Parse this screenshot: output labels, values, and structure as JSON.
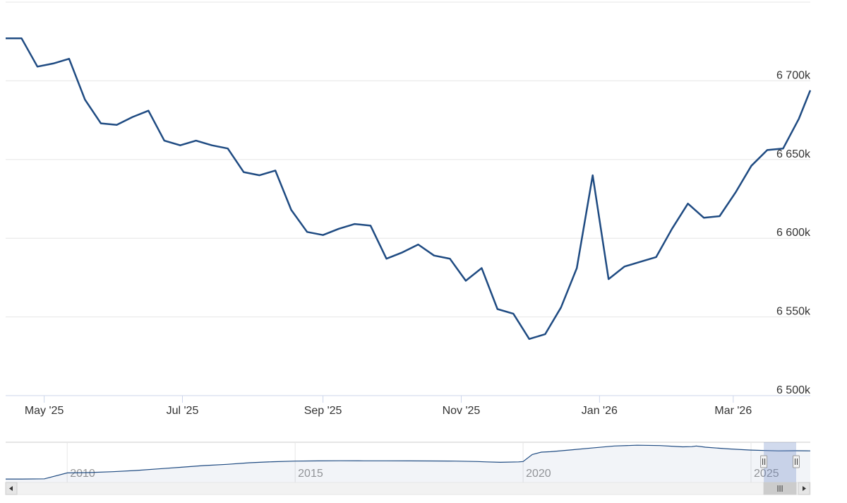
{
  "chart_data": {
    "type": "line",
    "title": "",
    "xlabel": "",
    "ylabel": "",
    "ylim": [
      6500000,
      6750000
    ],
    "y_ticks": [
      6500000,
      6550000,
      6600000,
      6650000,
      6700000
    ],
    "y_tick_labels": [
      "6 500k",
      "6 550k",
      "6 600k",
      "6 650k",
      "6 700k"
    ],
    "x_tick_labels": [
      "May '25",
      "Jul '25",
      "Sep '25",
      "Nov '25",
      "Jan '26",
      "Mar '26"
    ],
    "x_tick_dates": [
      "2025-05-01",
      "2025-07-01",
      "2025-09-01",
      "2025-11-01",
      "2026-01-01",
      "2026-03-01"
    ],
    "x_range": [
      "2025-04-14",
      "2026-04-04"
    ],
    "grid": true,
    "line_color": "#1f4b82",
    "series": [
      {
        "x": [
          "2025-04-14",
          "2025-04-21",
          "2025-04-28",
          "2025-05-05",
          "2025-05-12",
          "2025-05-19",
          "2025-05-26",
          "2025-06-02",
          "2025-06-09",
          "2025-06-16",
          "2025-06-23",
          "2025-06-30",
          "2025-07-07",
          "2025-07-14",
          "2025-07-21",
          "2025-07-28",
          "2025-08-04",
          "2025-08-11",
          "2025-08-18",
          "2025-08-25",
          "2025-09-01",
          "2025-09-08",
          "2025-09-15",
          "2025-09-22",
          "2025-09-29",
          "2025-10-06",
          "2025-10-13",
          "2025-10-20",
          "2025-10-27",
          "2025-11-03",
          "2025-11-10",
          "2025-11-17",
          "2025-11-24",
          "2025-12-01",
          "2025-12-08",
          "2025-12-15",
          "2025-12-22",
          "2025-12-29",
          "2026-01-05",
          "2026-01-12",
          "2026-01-19",
          "2026-01-26",
          "2026-02-02",
          "2026-02-09",
          "2026-02-16",
          "2026-02-23",
          "2026-03-02",
          "2026-03-09",
          "2026-03-16",
          "2026-03-23",
          "2026-03-30",
          "2026-04-04"
        ],
        "values": [
          6727000,
          6727000,
          6709000,
          6711000,
          6714000,
          6688000,
          6673000,
          6672000,
          6677000,
          6681000,
          6662000,
          6659000,
          6662000,
          6659000,
          6657000,
          6642000,
          6640000,
          6643000,
          6618000,
          6604000,
          6602000,
          6606000,
          6609000,
          6608000,
          6587000,
          6591000,
          6596000,
          6589000,
          6587000,
          6573000,
          6581000,
          6555000,
          6552000,
          6536000,
          6539000,
          6556000,
          6581000,
          6640000,
          6574000,
          6582000,
          6585000,
          6588000,
          6606000,
          6622000,
          6613000,
          6614000,
          6629000,
          6646000,
          6656000,
          6657000,
          6676000,
          6694000
        ]
      }
    ],
    "navigator": {
      "x_labels": [
        "2010",
        "2015",
        "2020",
        "2025"
      ],
      "x_range": [
        2008.65,
        2026.3
      ],
      "selected_range": [
        2025.28,
        2026.3
      ],
      "x": [
        2008.65,
        2009.0,
        2009.5,
        2010.0,
        2010.5,
        2011.0,
        2011.5,
        2012.0,
        2012.5,
        2013.0,
        2013.5,
        2014.0,
        2014.5,
        2015.0,
        2015.5,
        2016.0,
        2016.5,
        2017.0,
        2017.5,
        2018.0,
        2018.5,
        2019.0,
        2019.2,
        2019.5,
        2019.9,
        2020.0,
        2020.2,
        2020.4,
        2020.6,
        2021.0,
        2021.5,
        2022.0,
        2022.5,
        2023.0,
        2023.5,
        2023.7,
        2023.8,
        2024.0,
        2024.5,
        2025.0,
        2025.3,
        2025.6,
        2026.0,
        2026.3
      ],
      "values": [
        5050000,
        5050000,
        5055000,
        5200000,
        5210000,
        5230000,
        5260000,
        5300000,
        5340000,
        5380000,
        5410000,
        5450000,
        5475000,
        5490000,
        5495000,
        5498000,
        5497000,
        5496000,
        5495000,
        5494000,
        5490000,
        5480000,
        5470000,
        5460000,
        5470000,
        5480000,
        5650000,
        5710000,
        5720000,
        5760000,
        5810000,
        5860000,
        5880000,
        5870000,
        5840000,
        5845000,
        5860000,
        5830000,
        5790000,
        5760000,
        5750000,
        5740000,
        5745000,
        5740000
      ]
    }
  }
}
